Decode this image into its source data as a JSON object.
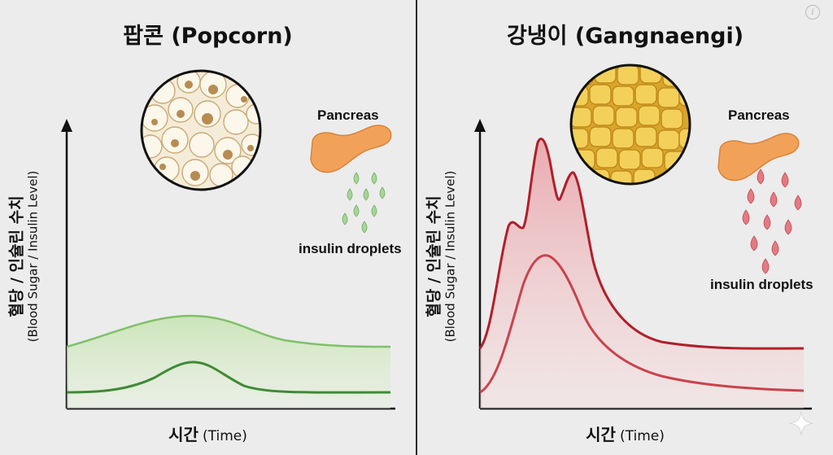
{
  "left": {
    "title": "팝콘 (Popcorn)",
    "ylabel_main": "혈당 / 인슐린 수치",
    "ylabel_sub": "(Blood Sugar / Insulin Level)",
    "xlabel_main": "시간",
    "xlabel_sub": "(Time)",
    "organ_label": "Pancreas",
    "drops_label": "insulin droplets",
    "accent": "#4f9a3f",
    "fill": "#cfe6bf",
    "drop_color": "#a7d39a",
    "image_icon": "popcorn-image-icon"
  },
  "right": {
    "title": "강냉이 (Gangnaengi)",
    "ylabel_main": "혈당 / 인슐린 수치",
    "ylabel_sub": "(Blood Sugar / Insulin Level)",
    "xlabel_main": "시간",
    "xlabel_sub": "(Time)",
    "organ_label": "Pancreas",
    "drops_label": "insulin droplets",
    "accent": "#b8202a",
    "fill": "#f2c3c5",
    "drop_color": "#e2737b",
    "image_icon": "corn-kernels-image-icon"
  },
  "icons": {
    "pancreas": "pancreas-icon",
    "info": "info-icon",
    "sparkle": "sparkle-icon"
  }
}
